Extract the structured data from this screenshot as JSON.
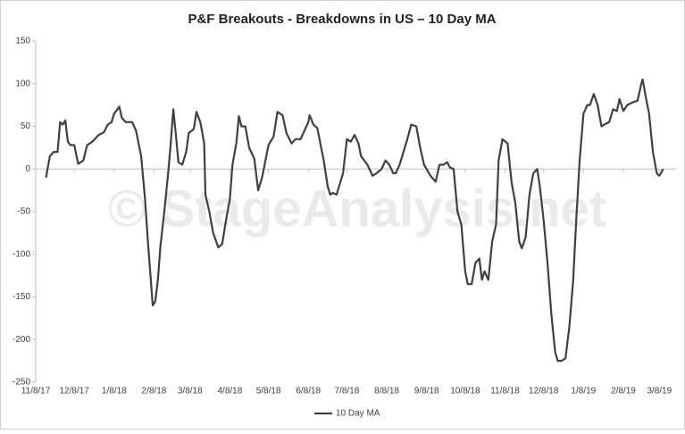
{
  "chart_data": {
    "type": "line",
    "title": "P&F Breakouts - Breakdowns in US – 10 Day MA",
    "watermark": "© StageAnalysis.net",
    "legend_position": "bottom",
    "xlim": [
      "2017-11-08",
      "2019-03-21"
    ],
    "xticks": [
      {
        "value": "2017-11-08",
        "label": "11/8/17"
      },
      {
        "value": "2017-12-08",
        "label": "12/8/17"
      },
      {
        "value": "2018-01-08",
        "label": "1/8/18"
      },
      {
        "value": "2018-02-08",
        "label": "2/8/18"
      },
      {
        "value": "2018-03-08",
        "label": "3/8/18"
      },
      {
        "value": "2018-04-08",
        "label": "4/8/18"
      },
      {
        "value": "2018-05-08",
        "label": "5/8/18"
      },
      {
        "value": "2018-06-08",
        "label": "6/8/18"
      },
      {
        "value": "2018-07-08",
        "label": "7/8/18"
      },
      {
        "value": "2018-08-08",
        "label": "8/8/18"
      },
      {
        "value": "2018-09-08",
        "label": "9/8/18"
      },
      {
        "value": "2018-10-08",
        "label": "10/8/18"
      },
      {
        "value": "2018-11-08",
        "label": "11/8/18"
      },
      {
        "value": "2018-12-08",
        "label": "12/8/18"
      },
      {
        "value": "2019-01-08",
        "label": "1/8/19"
      },
      {
        "value": "2019-02-08",
        "label": "2/8/19"
      },
      {
        "value": "2019-03-08",
        "label": "3/8/19"
      }
    ],
    "ylim": [
      -250,
      150
    ],
    "yticks": [
      -250,
      -200,
      -150,
      -100,
      -50,
      0,
      50,
      100,
      150
    ],
    "x": [
      "2017-11-16",
      "2017-11-19",
      "2017-11-22",
      "2017-11-25",
      "2017-11-27",
      "2017-11-29",
      "2017-12-01",
      "2017-12-03",
      "2017-12-05",
      "2017-12-08",
      "2017-12-11",
      "2017-12-15",
      "2017-12-18",
      "2017-12-22",
      "2017-12-27",
      "2017-12-31",
      "2018-01-03",
      "2018-01-06",
      "2018-01-08",
      "2018-01-12",
      "2018-01-14",
      "2018-01-17",
      "2018-01-22",
      "2018-01-25",
      "2018-01-27",
      "2018-01-29",
      "2018-02-01",
      "2018-02-03",
      "2018-02-07",
      "2018-02-09",
      "2018-02-11",
      "2018-02-13",
      "2018-02-16",
      "2018-02-19",
      "2018-02-21",
      "2018-02-23",
      "2018-02-25",
      "2018-02-27",
      "2018-03-02",
      "2018-03-05",
      "2018-03-07",
      "2018-03-11",
      "2018-03-13",
      "2018-03-16",
      "2018-03-19",
      "2018-03-20",
      "2018-03-23",
      "2018-03-26",
      "2018-03-30",
      "2018-04-02",
      "2018-04-05",
      "2018-04-08",
      "2018-04-10",
      "2018-04-13",
      "2018-04-15",
      "2018-04-17",
      "2018-04-20",
      "2018-04-23",
      "2018-04-27",
      "2018-04-30",
      "2018-05-03",
      "2018-05-05",
      "2018-05-08",
      "2018-05-12",
      "2018-05-15",
      "2018-05-19",
      "2018-05-22",
      "2018-05-26",
      "2018-05-29",
      "2018-06-02",
      "2018-06-05",
      "2018-06-08",
      "2018-06-09",
      "2018-06-12",
      "2018-06-15",
      "2018-06-18",
      "2018-06-20",
      "2018-06-23",
      "2018-06-25",
      "2018-06-27",
      "2018-06-30",
      "2018-07-03",
      "2018-07-05",
      "2018-07-08",
      "2018-07-11",
      "2018-07-14",
      "2018-07-17",
      "2018-07-19",
      "2018-07-24",
      "2018-07-28",
      "2018-07-31",
      "2018-08-04",
      "2018-08-07",
      "2018-08-10",
      "2018-08-13",
      "2018-08-15",
      "2018-08-18",
      "2018-08-21",
      "2018-08-24",
      "2018-08-27",
      "2018-08-31",
      "2018-09-03",
      "2018-09-06",
      "2018-09-08",
      "2018-09-11",
      "2018-09-15",
      "2018-09-18",
      "2018-09-21",
      "2018-09-24",
      "2018-09-26",
      "2018-09-29",
      "2018-10-02",
      "2018-10-05",
      "2018-10-08",
      "2018-10-10",
      "2018-10-13",
      "2018-10-16",
      "2018-10-19",
      "2018-10-21",
      "2018-10-23",
      "2018-10-26",
      "2018-10-29",
      "2018-11-01",
      "2018-11-03",
      "2018-11-06",
      "2018-11-10",
      "2018-11-13",
      "2018-11-16",
      "2018-11-19",
      "2018-11-21",
      "2018-11-24",
      "2018-11-27",
      "2018-11-30",
      "2018-12-03",
      "2018-12-05",
      "2018-12-08",
      "2018-12-11",
      "2018-12-14",
      "2018-12-17",
      "2018-12-19",
      "2018-12-22",
      "2018-12-25",
      "2018-12-28",
      "2018-12-31",
      "2019-01-02",
      "2019-01-05",
      "2019-01-08",
      "2019-01-11",
      "2019-01-13",
      "2019-01-16",
      "2019-01-19",
      "2019-01-22",
      "2019-01-24",
      "2019-01-28",
      "2019-01-31",
      "2019-02-03",
      "2019-02-05",
      "2019-02-08",
      "2019-02-11",
      "2019-02-15",
      "2019-02-19",
      "2019-02-22",
      "2019-02-23",
      "2019-02-26",
      "2019-02-28",
      "2019-03-03",
      "2019-03-06",
      "2019-03-08",
      "2019-03-11"
    ],
    "series": [
      {
        "name": "10 Day MA",
        "color": "#404040",
        "values": [
          -10,
          15,
          20,
          20,
          55,
          52,
          57,
          32,
          28,
          28,
          6,
          10,
          28,
          32,
          40,
          43,
          52,
          55,
          65,
          73,
          60,
          55,
          55,
          45,
          30,
          15,
          -35,
          -80,
          -160,
          -155,
          -130,
          -90,
          -50,
          -5,
          30,
          70,
          40,
          8,
          5,
          20,
          42,
          47,
          67,
          55,
          30,
          -30,
          -50,
          -75,
          -92,
          -88,
          -60,
          -35,
          5,
          30,
          62,
          50,
          50,
          25,
          12,
          -25,
          -10,
          5,
          28,
          38,
          67,
          63,
          42,
          30,
          35,
          35,
          45,
          55,
          63,
          52,
          48,
          25,
          10,
          -20,
          -30,
          -28,
          -30,
          -15,
          -5,
          35,
          32,
          40,
          30,
          15,
          5,
          -8,
          -5,
          0,
          10,
          5,
          -5,
          -5,
          5,
          20,
          35,
          52,
          50,
          25,
          5,
          0,
          -8,
          -15,
          5,
          5,
          8,
          2,
          0,
          -50,
          -65,
          -120,
          -135,
          -135,
          -110,
          -105,
          -130,
          -120,
          -130,
          -85,
          -65,
          10,
          35,
          30,
          -15,
          -40,
          -85,
          -93,
          -80,
          -30,
          -5,
          0,
          -20,
          -60,
          -110,
          -170,
          -215,
          -225,
          -225,
          -222,
          -185,
          -130,
          -70,
          10,
          65,
          75,
          75,
          88,
          75,
          50,
          52,
          55,
          70,
          68,
          82,
          68,
          75,
          78,
          80,
          100,
          105,
          80,
          65,
          20,
          -5,
          -8,
          0
        ]
      }
    ]
  }
}
